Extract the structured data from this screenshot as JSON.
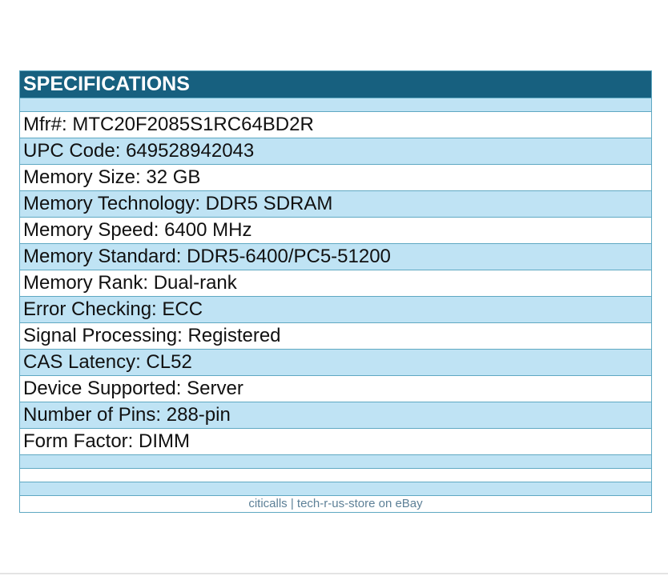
{
  "header": {
    "title": "SPECIFICATIONS"
  },
  "specs": [
    {
      "label": "Mfr#:",
      "value": "MTC20F2085S1RC64BD2R"
    },
    {
      "label": "UPC Code:",
      "value": "649528942043"
    },
    {
      "label": "Memory Size:",
      "value": "32 GB"
    },
    {
      "label": "Memory Technology:",
      "value": "DDR5 SDRAM"
    },
    {
      "label": "Memory Speed:",
      "value": "6400 MHz"
    },
    {
      "label": "Memory Standard:",
      "value": "DDR5-6400/PC5-51200"
    },
    {
      "label": "Memory Rank:",
      "value": "Dual-rank"
    },
    {
      "label": "Error Checking:",
      "value": "ECC"
    },
    {
      "label": "Signal Processing:",
      "value": "Registered"
    },
    {
      "label": "CAS Latency:",
      "value": "CL52"
    },
    {
      "label": "Device Supported:",
      "value": "Server"
    },
    {
      "label": "Number of Pins:",
      "value": "288-pin"
    },
    {
      "label": "Form Factor:",
      "value": "DIMM"
    }
  ],
  "footer": {
    "text": "citicalls | tech-r-us-store on eBay"
  },
  "colors": {
    "header_bg": "#17607f",
    "row_blue": "#bfe3f4",
    "border": "#5fa8c2",
    "footer_text": "#5d8097"
  }
}
